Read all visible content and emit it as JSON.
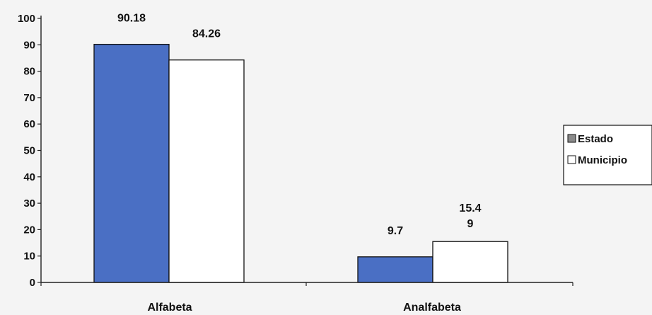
{
  "chart_data": {
    "type": "bar",
    "categories": [
      "Alfabeta",
      "Analfabeta"
    ],
    "series": [
      {
        "name": "Estado",
        "values": [
          90.18,
          9.7
        ],
        "labels": [
          "90.18",
          "9.7"
        ],
        "color": "#4a6fc4"
      },
      {
        "name": "Municipio",
        "values": [
          84.26,
          15.49
        ],
        "labels": [
          "84.26",
          "15.4\n9"
        ],
        "color": "#ffffff"
      }
    ],
    "title": "",
    "xlabel": "",
    "ylabel": "",
    "ylim": [
      0,
      100
    ],
    "yticks": [
      0,
      10,
      20,
      30,
      40,
      50,
      60,
      70,
      80,
      90,
      100
    ],
    "grid": false,
    "legend_position": "right"
  }
}
